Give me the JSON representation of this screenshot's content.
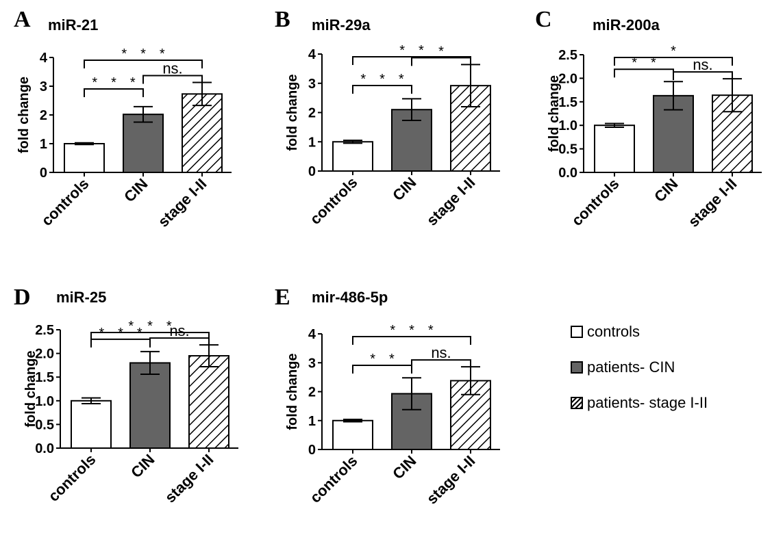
{
  "colors": {
    "controls": "#ffffff",
    "cin": "#646464",
    "stage": "hatched"
  },
  "legend": [
    {
      "label": "controls",
      "fill": "white"
    },
    {
      "label": "patients- CIN",
      "fill": "gray"
    },
    {
      "label": "patients- stage I-II",
      "fill": "hatch"
    }
  ],
  "chart_data": [
    {
      "panel": "A",
      "type": "bar",
      "title": "miR-21",
      "ylabel": "fold change",
      "categories": [
        "controls",
        "CIN",
        "stage I-II"
      ],
      "values": [
        1.0,
        2.02,
        2.73
      ],
      "error": [
        0.03,
        0.27,
        0.4
      ],
      "ylim": [
        0,
        4
      ],
      "yticks": [
        "0",
        "1",
        "2",
        "3",
        "4"
      ],
      "significance": [
        {
          "pair": [
            0,
            1
          ],
          "label": "* * *"
        },
        {
          "pair": [
            1,
            2
          ],
          "label": "ns."
        },
        {
          "pair": [
            0,
            2
          ],
          "label": "* * *"
        }
      ]
    },
    {
      "panel": "B",
      "type": "bar",
      "title": "miR-29a",
      "ylabel": "fold change",
      "categories": [
        "controls",
        "CIN",
        "stage I-II"
      ],
      "values": [
        1.0,
        2.1,
        2.92
      ],
      "error": [
        0.05,
        0.37,
        0.72
      ],
      "ylim": [
        0,
        4
      ],
      "yticks": [
        "0",
        "1",
        "2",
        "3",
        "4"
      ],
      "significance": [
        {
          "pair": [
            0,
            1
          ],
          "label": "* * *"
        },
        {
          "pair": [
            1,
            2
          ],
          "label": "*"
        },
        {
          "pair": [
            0,
            2
          ],
          "label": "* *"
        }
      ]
    },
    {
      "panel": "C",
      "type": "bar",
      "title": "miR-200a",
      "ylabel": "fold change",
      "categories": [
        "controls",
        "CIN",
        "stage I-II"
      ],
      "values": [
        1.0,
        1.63,
        1.64
      ],
      "error": [
        0.04,
        0.3,
        0.35
      ],
      "ylim": [
        0,
        2.5
      ],
      "yticks": [
        "0.0",
        "0.5",
        "1.0",
        "1.5",
        "2.0",
        "2.5"
      ],
      "significance": [
        {
          "pair": [
            0,
            1
          ],
          "label": "* *"
        },
        {
          "pair": [
            1,
            2
          ],
          "label": "ns."
        },
        {
          "pair": [
            0,
            2
          ],
          "label": "*"
        }
      ]
    },
    {
      "panel": "D",
      "type": "bar",
      "title": "miR-25",
      "ylabel": "fold change",
      "categories": [
        "controls",
        "CIN",
        "stage I-II"
      ],
      "values": [
        1.0,
        1.8,
        1.95
      ],
      "error": [
        0.06,
        0.24,
        0.23
      ],
      "ylim": [
        0,
        2.5
      ],
      "yticks": [
        "0.0",
        "0.5",
        "1.0",
        "1.5",
        "2.0",
        "2.5"
      ],
      "significance": [
        {
          "pair": [
            0,
            1
          ],
          "label": "* * *"
        },
        {
          "pair": [
            1,
            2
          ],
          "label": "ns."
        },
        {
          "pair": [
            0,
            2
          ],
          "label": "* * *"
        }
      ]
    },
    {
      "panel": "E",
      "type": "bar",
      "title": "mir-486-5p",
      "ylabel": "fold change",
      "categories": [
        "controls",
        "CIN",
        "stage I-II"
      ],
      "values": [
        1.0,
        1.93,
        2.38
      ],
      "error": [
        0.04,
        0.55,
        0.48
      ],
      "ylim": [
        0,
        4
      ],
      "yticks": [
        "0",
        "1",
        "2",
        "3",
        "4"
      ],
      "significance": [
        {
          "pair": [
            0,
            1
          ],
          "label": "* *"
        },
        {
          "pair": [
            1,
            2
          ],
          "label": "ns."
        },
        {
          "pair": [
            0,
            2
          ],
          "label": "* * *"
        }
      ]
    }
  ]
}
